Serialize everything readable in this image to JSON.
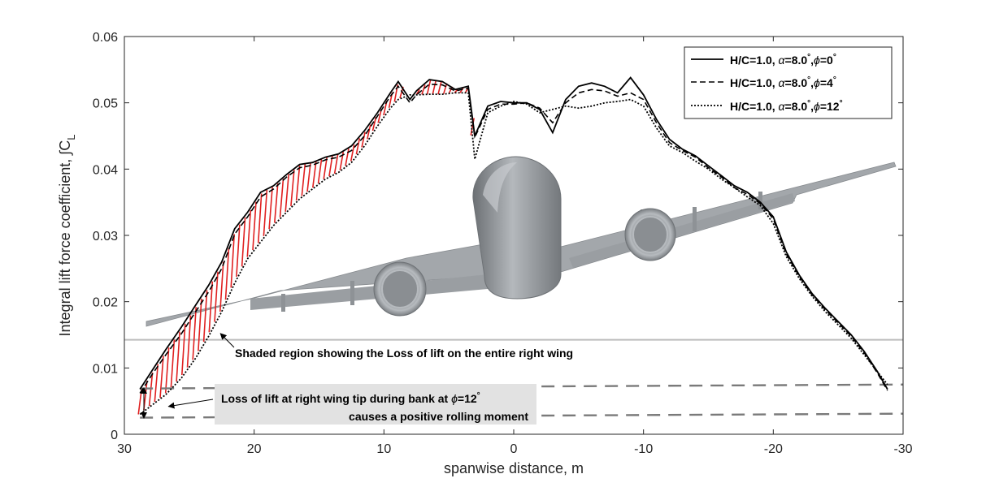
{
  "chart_data": {
    "type": "line",
    "title": "",
    "xlabel": "spanwise distance, m",
    "ylabel": "Integral lift force coefficient, ∫C",
    "ylabel_sub": "L",
    "xlim": [
      30,
      -30
    ],
    "ylim": [
      0,
      0.06
    ],
    "x_ticks": [
      30,
      20,
      10,
      0,
      -10,
      -20,
      -30
    ],
    "x_tick_labels": [
      "30",
      "20",
      "10",
      "0",
      "-10",
      "-20",
      "-30"
    ],
    "y_ticks": [
      0,
      0.01,
      0.02,
      0.03,
      0.04,
      0.05,
      0.06
    ],
    "y_tick_labels": [
      "0",
      "0.01",
      "0.02",
      "0.03",
      "0.04",
      "0.05",
      "0.06"
    ],
    "series": [
      {
        "name": "H/C=1.0, α=8.0°,ϕ=0°",
        "legend_base": "H/C=1.0, ",
        "legend_alpha": "=8.0",
        "legend_phi": "=0",
        "style": "solid",
        "x": [
          28.8,
          27.8,
          26.8,
          25.6,
          24.5,
          23.5,
          22.5,
          21.5,
          20.5,
          19.5,
          18.5,
          17.5,
          16.5,
          15.5,
          14.5,
          13.5,
          12.5,
          11.5,
          10.5,
          9.5,
          8.9,
          8.0,
          7.5,
          6.5,
          5.5,
          4.5,
          3.5,
          3.0,
          2.0,
          1.0,
          0.0,
          -1.0,
          -2.0,
          -3.0,
          -4.0,
          -5.0,
          -6.0,
          -7.0,
          -8.0,
          -9.0,
          -10.0,
          -11.0,
          -12.0,
          -13.0,
          -14.0,
          -15.0,
          -16.0,
          -17.0,
          -18.0,
          -19.0,
          -20.0,
          -21.0,
          -22.0,
          -23.0,
          -24.0,
          -25.0,
          -26.0,
          -27.0,
          -28.0,
          -28.8
        ],
        "y": [
          0.0068,
          0.0098,
          0.0128,
          0.0162,
          0.0195,
          0.0225,
          0.026,
          0.031,
          0.0335,
          0.0365,
          0.0375,
          0.0392,
          0.0407,
          0.041,
          0.0418,
          0.0423,
          0.0435,
          0.0458,
          0.0485,
          0.0515,
          0.0532,
          0.0505,
          0.0518,
          0.0535,
          0.0532,
          0.052,
          0.0525,
          0.045,
          0.0495,
          0.0502,
          0.05,
          0.05,
          0.049,
          0.0455,
          0.0505,
          0.0525,
          0.053,
          0.0525,
          0.0515,
          0.0538,
          0.0512,
          0.0475,
          0.0445,
          0.043,
          0.042,
          0.0405,
          0.039,
          0.0375,
          0.0365,
          0.035,
          0.0328,
          0.0275,
          0.024,
          0.0212,
          0.019,
          0.017,
          0.015,
          0.0125,
          0.0095,
          0.0068
        ]
      },
      {
        "name": "H/C=1.0, α=8.0°,ϕ=4°",
        "legend_base": "H/C=1.0, ",
        "legend_alpha": "=8.0",
        "legend_phi": "=4",
        "style": "dashed",
        "x": [
          28.8,
          27.8,
          26.8,
          25.6,
          24.5,
          23.5,
          22.5,
          21.5,
          20.5,
          19.5,
          18.5,
          17.5,
          16.5,
          15.5,
          14.5,
          13.5,
          12.5,
          11.5,
          10.5,
          9.5,
          8.9,
          8.0,
          7.5,
          6.5,
          5.5,
          4.5,
          3.5,
          3.0,
          2.0,
          1.0,
          0.0,
          -1.0,
          -2.0,
          -3.0,
          -4.0,
          -5.0,
          -6.0,
          -7.0,
          -8.0,
          -9.0,
          -10.0,
          -11.0,
          -12.0,
          -13.0,
          -14.0,
          -15.0,
          -16.0,
          -17.0,
          -18.0,
          -19.0,
          -20.0,
          -21.0,
          -22.0,
          -23.0,
          -24.0,
          -25.0,
          -26.0,
          -27.0,
          -28.0,
          -28.8
        ],
        "y": [
          0.0062,
          0.0092,
          0.012,
          0.0152,
          0.0185,
          0.0215,
          0.025,
          0.0302,
          0.0328,
          0.0358,
          0.037,
          0.0388,
          0.0402,
          0.0406,
          0.0414,
          0.0418,
          0.0428,
          0.045,
          0.048,
          0.051,
          0.0525,
          0.05,
          0.0512,
          0.0528,
          0.0527,
          0.0518,
          0.0522,
          0.0448,
          0.049,
          0.0498,
          0.0498,
          0.05,
          0.0492,
          0.047,
          0.05,
          0.0515,
          0.052,
          0.0518,
          0.051,
          0.0515,
          0.0505,
          0.047,
          0.044,
          0.0428,
          0.0418,
          0.0402,
          0.0388,
          0.0372,
          0.0362,
          0.0348,
          0.0325,
          0.0272,
          0.0238,
          0.021,
          0.0188,
          0.0168,
          0.0148,
          0.0123,
          0.0093,
          0.0066
        ]
      },
      {
        "name": "H/C=1.0, α=8.0°,ϕ=12°",
        "legend_base": "H/C=1.0, ",
        "legend_alpha": "=8.0",
        "legend_phi": "=12",
        "style": "dotted",
        "x": [
          28.8,
          27.8,
          26.8,
          25.6,
          24.5,
          23.5,
          22.5,
          21.5,
          20.5,
          19.5,
          18.5,
          17.5,
          16.5,
          15.5,
          14.5,
          13.5,
          12.5,
          11.5,
          10.5,
          9.5,
          8.9,
          8.0,
          7.5,
          6.5,
          5.5,
          4.5,
          3.5,
          3.0,
          2.0,
          1.0,
          0.0,
          -1.0,
          -2.0,
          -3.0,
          -4.0,
          -5.0,
          -6.0,
          -7.0,
          -8.0,
          -9.0,
          -10.0,
          -11.0,
          -12.0,
          -13.0,
          -14.0,
          -15.0,
          -16.0,
          -17.0,
          -18.0,
          -19.0,
          -20.0,
          -21.0,
          -22.0,
          -23.0,
          -24.0,
          -25.0,
          -26.0,
          -27.0,
          -28.8
        ],
        "y": [
          0.003,
          0.0045,
          0.006,
          0.0085,
          0.0115,
          0.0148,
          0.0185,
          0.0228,
          0.0265,
          0.029,
          0.0315,
          0.0335,
          0.0355,
          0.037,
          0.0385,
          0.0395,
          0.041,
          0.0435,
          0.0465,
          0.0492,
          0.0505,
          0.0512,
          0.0512,
          0.0513,
          0.0513,
          0.0515,
          0.0515,
          0.0415,
          0.0485,
          0.0495,
          0.0502,
          0.0498,
          0.0485,
          0.049,
          0.0495,
          0.0492,
          0.0495,
          0.05,
          0.0502,
          0.0505,
          0.0495,
          0.0462,
          0.0435,
          0.0425,
          0.0412,
          0.04,
          0.0385,
          0.0372,
          0.0358,
          0.0345,
          0.0318,
          0.0268,
          0.0235,
          0.0208,
          0.0185,
          0.0165,
          0.0145,
          0.012,
          0.0075
        ]
      }
    ],
    "reference_lines": [
      {
        "name": "upper-tip-level",
        "x0": 28.8,
        "y0": 0.0069,
        "x1": -30,
        "y1": 0.0075
      },
      {
        "name": "lower-tip-level",
        "x0": 28.8,
        "y0": 0.0025,
        "x1": -30,
        "y1": 0.0031
      },
      {
        "name": "horizon-line",
        "x0": 30,
        "y0": 0.01425,
        "x1": -30,
        "y1": 0.01425
      }
    ],
    "shaded_region": {
      "x_from": 28.8,
      "x_to": 3.0,
      "between_series": [
        0,
        2
      ],
      "color": "#e02020"
    },
    "annotations": [
      {
        "name": "shaded-region-annotation",
        "text": "Shaded region showing the Loss of lift on the entire right wing",
        "arrow_to": [
          22.6,
          0.0152
        ]
      },
      {
        "name": "wing-tip-annotation",
        "line1_prefix": "Loss of lift at right wing tip during bank at ",
        "line1_phi": "=12",
        "line2": "causes a positive rolling moment",
        "arrow_to": [
          26.6,
          0.0042
        ]
      }
    ],
    "legend_position": "top-right",
    "grid": false,
    "colors": {
      "axis": "#262626",
      "shade": "#e02020",
      "reference": "#7a7a7a",
      "horizon": "#bdbdbd",
      "annotation_box": "#e2e2e2",
      "aircraft_body": "#8e9296",
      "aircraft_wing": "#a3a7ab",
      "aircraft_engine": "#9a9ea2",
      "aircraft_shadow": "#6e7276"
    }
  }
}
